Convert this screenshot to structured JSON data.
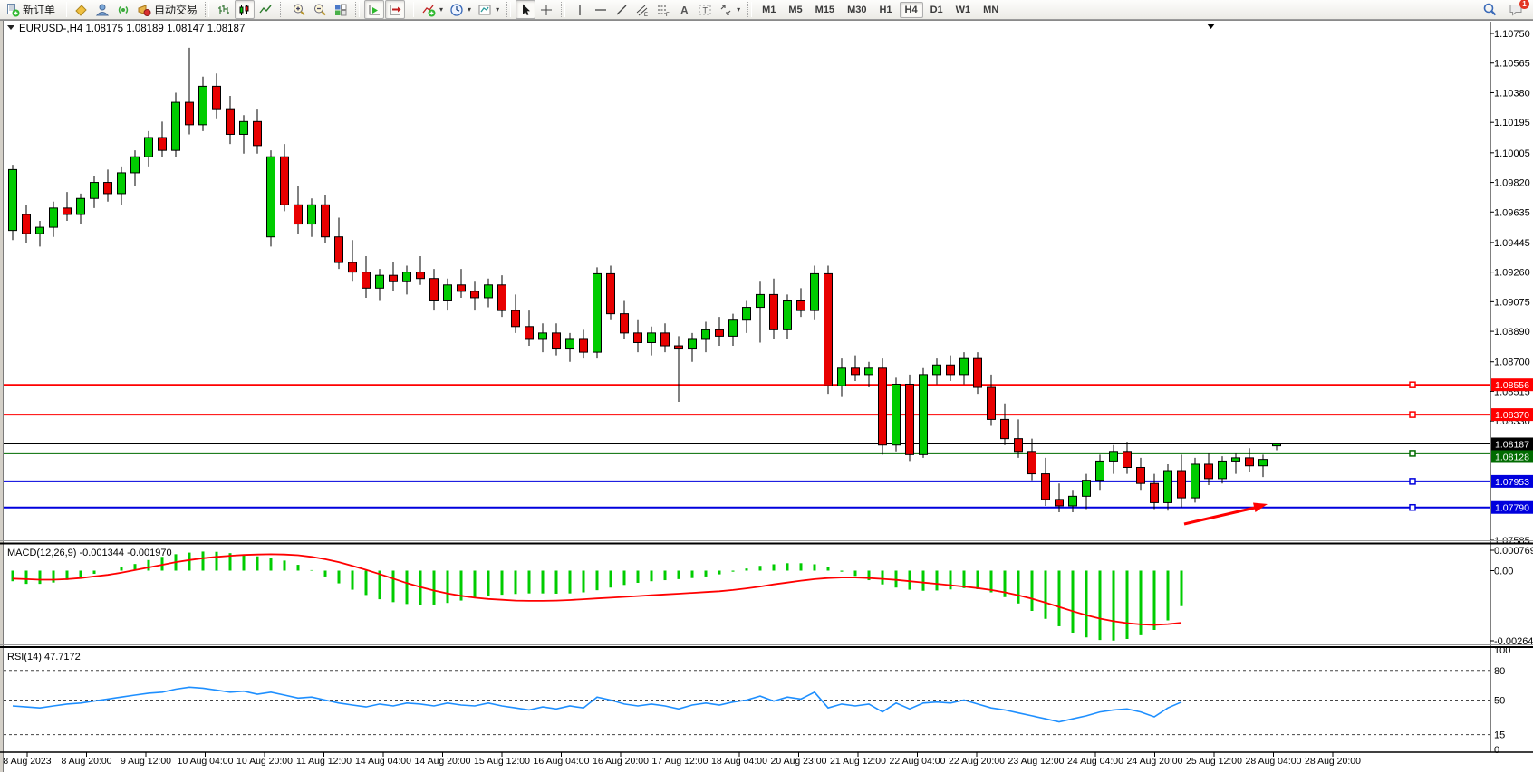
{
  "toolbar": {
    "new_order": "新订单",
    "auto_trading": "自动交易",
    "timeframes": [
      "M1",
      "M5",
      "M15",
      "M30",
      "H1",
      "H4",
      "D1",
      "W1",
      "MN"
    ],
    "active_timeframe": "H4",
    "notification_badge": "1"
  },
  "chart": {
    "symbol_title": "EURUSD-,H4",
    "ohlc_display": "1.08175 1.08189 1.08147 1.08187",
    "price_ticks": [
      "1.10750",
      "1.10565",
      "1.10380",
      "1.10195",
      "1.10005",
      "1.09820",
      "1.09635",
      "1.09445",
      "1.09260",
      "1.09075",
      "1.08890",
      "1.08700",
      "1.08515",
      "1.08330",
      "1.07585"
    ],
    "price_tick_values": [
      1.1075,
      1.10565,
      1.1038,
      1.10195,
      1.10005,
      1.0982,
      1.09635,
      1.09445,
      1.0926,
      1.09075,
      1.0889,
      1.087,
      1.08515,
      1.0833,
      1.07585
    ],
    "time_labels": [
      "8 Aug 2023",
      "8 Aug 20:00",
      "9 Aug 12:00",
      "10 Aug 04:00",
      "10 Aug 20:00",
      "11 Aug 12:00",
      "14 Aug 04:00",
      "14 Aug 20:00",
      "15 Aug 12:00",
      "16 Aug 04:00",
      "16 Aug 20:00",
      "17 Aug 12:00",
      "18 Aug 04:00",
      "20 Aug 23:00",
      "21 Aug 12:00",
      "22 Aug 04:00",
      "22 Aug 20:00",
      "23 Aug 12:00",
      "24 Aug 04:00",
      "24 Aug 20:00",
      "25 Aug 12:00",
      "28 Aug 04:00",
      "28 Aug 20:00"
    ],
    "hlines": [
      {
        "label": "1.08556",
        "value": 1.08556,
        "color": "#ff0000",
        "width": 2,
        "handle": true
      },
      {
        "label": "1.08370",
        "value": 1.0837,
        "color": "#ff0000",
        "width": 2,
        "handle": true
      },
      {
        "label": "1.08187",
        "value": 1.08187,
        "color": "#000000",
        "width": 1,
        "handle": false
      },
      {
        "label": "1.08128",
        "value": 1.08128,
        "color": "#006b00",
        "width": 2,
        "handle": true
      },
      {
        "label": "1.07953",
        "value": 1.07953,
        "color": "#0000dd",
        "width": 2,
        "handle": true
      },
      {
        "label": "1.07790",
        "value": 1.0779,
        "color": "#0000dd",
        "width": 2,
        "handle": true
      }
    ],
    "colors": {
      "up": "#00cc00",
      "down": "#e80000",
      "wick": "#000000",
      "rsi_line": "#1e8fff",
      "signal_line": "#ff0000",
      "background": "#ffffff",
      "axis_text": "#000000"
    }
  },
  "chart_data": [
    {
      "type": "candlestick",
      "name": "EURUSD H4",
      "ylim": [
        1.07585,
        1.1075
      ],
      "ohlc": [
        [
          1.0952,
          1.0993,
          1.0946,
          1.099
        ],
        [
          1.0962,
          1.0968,
          1.0944,
          1.095
        ],
        [
          1.095,
          1.0958,
          1.0942,
          1.0954
        ],
        [
          1.0954,
          1.097,
          1.0948,
          1.0966
        ],
        [
          1.0966,
          1.0976,
          1.0958,
          1.0962
        ],
        [
          1.0962,
          1.0975,
          1.0956,
          1.0972
        ],
        [
          1.0972,
          1.0986,
          1.0966,
          1.0982
        ],
        [
          1.0982,
          1.099,
          1.097,
          1.0975
        ],
        [
          1.0975,
          1.0992,
          1.0968,
          1.0988
        ],
        [
          1.0988,
          1.1002,
          1.098,
          1.0998
        ],
        [
          1.0998,
          1.1014,
          1.0992,
          1.101
        ],
        [
          1.101,
          1.102,
          1.0998,
          1.1002
        ],
        [
          1.1002,
          1.1038,
          1.0998,
          1.1032
        ],
        [
          1.1032,
          1.1066,
          1.1012,
          1.1018
        ],
        [
          1.1018,
          1.1048,
          1.1014,
          1.1042
        ],
        [
          1.1042,
          1.105,
          1.1022,
          1.1028
        ],
        [
          1.1028,
          1.1036,
          1.1006,
          1.1012
        ],
        [
          1.1012,
          1.1024,
          1.1,
          1.102
        ],
        [
          1.102,
          1.1028,
          1.1,
          1.1005
        ],
        [
          1.0948,
          1.1002,
          1.0942,
          1.0998
        ],
        [
          1.0998,
          1.1006,
          1.0964,
          1.0968
        ],
        [
          1.0968,
          1.098,
          1.095,
          1.0956
        ],
        [
          1.0956,
          1.0972,
          1.0948,
          1.0968
        ],
        [
          1.0968,
          1.0974,
          1.0944,
          1.0948
        ],
        [
          1.0948,
          1.096,
          1.0928,
          1.0932
        ],
        [
          1.0932,
          1.0946,
          1.092,
          1.0926
        ],
        [
          1.0926,
          1.0936,
          1.091,
          1.0916
        ],
        [
          1.0916,
          1.0928,
          1.0908,
          1.0924
        ],
        [
          1.0924,
          1.0932,
          1.0914,
          1.092
        ],
        [
          1.092,
          1.093,
          1.0912,
          1.0926
        ],
        [
          1.0926,
          1.0936,
          1.0918,
          1.0922
        ],
        [
          1.0922,
          1.0928,
          1.0902,
          1.0908
        ],
        [
          1.0908,
          1.0922,
          1.0902,
          1.0918
        ],
        [
          1.0918,
          1.0928,
          1.091,
          1.0914
        ],
        [
          1.0914,
          1.092,
          1.0902,
          1.091
        ],
        [
          1.091,
          1.0922,
          1.0904,
          1.0918
        ],
        [
          1.0918,
          1.0924,
          1.0898,
          1.0902
        ],
        [
          1.0902,
          1.0912,
          1.0888,
          1.0892
        ],
        [
          1.0892,
          1.0902,
          1.088,
          1.0884
        ],
        [
          1.0884,
          1.0894,
          1.0876,
          1.0888
        ],
        [
          1.0888,
          1.0894,
          1.0874,
          1.0878
        ],
        [
          1.0878,
          1.0888,
          1.087,
          1.0884
        ],
        [
          1.0884,
          1.089,
          1.0872,
          1.0876
        ],
        [
          1.0876,
          1.0929,
          1.0872,
          1.0925
        ],
        [
          1.0925,
          1.093,
          1.0896,
          1.09
        ],
        [
          1.09,
          1.0908,
          1.0884,
          1.0888
        ],
        [
          1.0888,
          1.0896,
          1.0876,
          1.0882
        ],
        [
          1.0882,
          1.0892,
          1.0874,
          1.0888
        ],
        [
          1.0888,
          1.0894,
          1.0876,
          1.088
        ],
        [
          1.088,
          1.0886,
          1.0845,
          1.0878
        ],
        [
          1.0878,
          1.0888,
          1.087,
          1.0884
        ],
        [
          1.0884,
          1.0895,
          1.0876,
          1.089
        ],
        [
          1.089,
          1.0898,
          1.088,
          1.0886
        ],
        [
          1.0886,
          1.09,
          1.088,
          1.0896
        ],
        [
          1.0896,
          1.0908,
          1.0888,
          1.0904
        ],
        [
          1.0904,
          1.092,
          1.0882,
          1.0912
        ],
        [
          1.0912,
          1.0922,
          1.0884,
          1.089
        ],
        [
          1.089,
          1.0912,
          1.0884,
          1.0908
        ],
        [
          1.0908,
          1.0916,
          1.0898,
          1.0902
        ],
        [
          1.0902,
          1.093,
          1.0896,
          1.0925
        ],
        [
          1.0925,
          1.093,
          1.085,
          1.0855
        ],
        [
          1.0855,
          1.0872,
          1.0848,
          1.0866
        ],
        [
          1.0866,
          1.0874,
          1.0858,
          1.0862
        ],
        [
          1.0862,
          1.087,
          1.0854,
          1.0866
        ],
        [
          1.0866,
          1.0872,
          1.0812,
          1.0818
        ],
        [
          1.0818,
          1.086,
          1.0814,
          1.0856
        ],
        [
          1.0856,
          1.0862,
          1.0808,
          1.0812
        ],
        [
          1.0812,
          1.0866,
          1.081,
          1.0862
        ],
        [
          1.0862,
          1.0872,
          1.0856,
          1.0868
        ],
        [
          1.0868,
          1.0874,
          1.0858,
          1.0862
        ],
        [
          1.0862,
          1.0876,
          1.0856,
          1.0872
        ],
        [
          1.0872,
          1.0876,
          1.085,
          1.0854
        ],
        [
          1.0854,
          1.0862,
          1.083,
          1.0834
        ],
        [
          1.0834,
          1.0844,
          1.0818,
          1.0822
        ],
        [
          1.0822,
          1.0834,
          1.081,
          1.0814
        ],
        [
          1.0814,
          1.0822,
          1.0796,
          1.08
        ],
        [
          1.08,
          1.081,
          1.078,
          1.0784
        ],
        [
          1.0784,
          1.0794,
          1.0776,
          1.078
        ],
        [
          1.078,
          1.079,
          1.0776,
          1.0786
        ],
        [
          1.0786,
          1.08,
          1.0778,
          1.0796
        ],
        [
          1.0796,
          1.0812,
          1.079,
          1.0808
        ],
        [
          1.0808,
          1.0818,
          1.08,
          1.0814
        ],
        [
          1.0814,
          1.082,
          1.08,
          1.0804
        ],
        [
          1.0804,
          1.081,
          1.079,
          1.0794
        ],
        [
          1.0794,
          1.08,
          1.0778,
          1.0782
        ],
        [
          1.0782,
          1.0806,
          1.0777,
          1.0802
        ],
        [
          1.0802,
          1.0812,
          1.0779,
          1.0785
        ],
        [
          1.0785,
          1.081,
          1.0782,
          1.0806
        ],
        [
          1.0806,
          1.0813,
          1.0793,
          1.0797
        ],
        [
          1.0797,
          1.0811,
          1.0794,
          1.0808
        ],
        [
          1.0808,
          1.0813,
          1.08,
          1.081
        ],
        [
          1.081,
          1.0816,
          1.0801,
          1.0805
        ],
        [
          1.0805,
          1.0812,
          1.0798,
          1.0809
        ],
        [
          1.08175,
          1.08189,
          1.08147,
          1.08187
        ]
      ]
    },
    {
      "type": "bar",
      "name": "MACD(12,26,9)",
      "label": "MACD(12,26,9) -0.001344 -0.001970",
      "macd_value": -0.001344,
      "signal_value": -0.00197,
      "ylim": [
        -0.002648,
        0.000769
      ],
      "axis_labels": [
        "0.000769",
        "0.00",
        "-0.002648"
      ],
      "histogram": [
        -0.0004,
        -0.0005,
        -0.0005,
        -0.00045,
        -0.00035,
        -0.00025,
        -0.00012,
        0,
        0.00012,
        0.00025,
        0.0004,
        0.00052,
        0.00062,
        0.00068,
        0.00072,
        0.00071,
        0.00066,
        0.0006,
        0.00054,
        0.00048,
        0.00038,
        0.00022,
        2e-05,
        -0.00022,
        -0.00048,
        -0.00072,
        -0.00092,
        -0.00108,
        -0.00119,
        -0.00126,
        -0.0013,
        -0.00128,
        -0.00122,
        -0.00113,
        -0.00104,
        -0.00097,
        -0.00091,
        -0.00088,
        -0.00086,
        -0.00086,
        -0.00087,
        -0.00086,
        -0.00082,
        -0.00074,
        -0.00064,
        -0.00054,
        -0.00046,
        -0.0004,
        -0.00036,
        -0.00032,
        -0.00028,
        -0.00022,
        -0.00014,
        -4e-05,
        8e-05,
        0.00018,
        0.00024,
        0.00028,
        0.00028,
        0.00024,
        0.00012,
        -4e-05,
        -0.0002,
        -0.00036,
        -0.00052,
        -0.00064,
        -0.00072,
        -0.00076,
        -0.00075,
        -0.00071,
        -0.00066,
        -0.0007,
        -0.00082,
        -0.001,
        -0.00124,
        -0.00152,
        -0.00182,
        -0.0021,
        -0.00234,
        -0.00252,
        -0.00262,
        -0.00264,
        -0.00258,
        -0.00244,
        -0.00224,
        -0.00188,
        -0.00134
      ],
      "signal": [
        -0.0003,
        -0.00032,
        -0.00034,
        -0.00034,
        -0.00032,
        -0.00028,
        -0.00022,
        -0.00016,
        -8e-05,
        2e-05,
        0.00012,
        0.00022,
        0.00032,
        0.0004,
        0.00047,
        0.00052,
        0.00056,
        0.00059,
        0.00061,
        0.00062,
        0.00061,
        0.00058,
        0.00052,
        0.00043,
        0.00032,
        0.00018,
        3e-05,
        -0.00013,
        -0.0003,
        -0.00047,
        -0.00062,
        -0.00075,
        -0.00086,
        -0.00095,
        -0.00102,
        -0.00107,
        -0.0011,
        -0.00113,
        -0.00114,
        -0.00114,
        -0.00113,
        -0.00111,
        -0.00108,
        -0.00105,
        -0.00102,
        -0.00099,
        -0.00096,
        -0.00093,
        -0.0009,
        -0.00087,
        -0.00084,
        -0.00081,
        -0.00078,
        -0.00073,
        -0.00067,
        -0.0006,
        -0.00052,
        -0.00045,
        -0.00038,
        -0.00032,
        -0.00028,
        -0.00026,
        -0.00026,
        -0.00028,
        -0.00031,
        -0.00035,
        -0.0004,
        -0.00045,
        -0.0005,
        -0.00055,
        -0.0006,
        -0.00066,
        -0.00073,
        -0.00082,
        -0.00093,
        -0.00106,
        -0.00121,
        -0.00137,
        -0.00153,
        -0.00168,
        -0.00181,
        -0.00191,
        -0.00198,
        -0.00203,
        -0.00205,
        -0.00202,
        -0.00197
      ]
    },
    {
      "type": "line",
      "name": "RSI(14)",
      "label": "RSI(14) 47.7172",
      "value": 47.7172,
      "ylim": [
        0,
        100
      ],
      "levels": [
        80,
        50,
        15
      ],
      "axis_labels": [
        "100",
        "80",
        "50",
        "15",
        "0"
      ],
      "values": [
        44,
        43,
        42,
        44,
        46,
        47,
        49,
        51,
        53,
        55,
        57,
        58,
        61,
        63,
        62,
        60,
        58,
        59,
        56,
        58,
        55,
        52,
        53,
        50,
        47,
        45,
        43,
        46,
        44,
        47,
        46,
        44,
        47,
        45,
        44,
        47,
        44,
        42,
        40,
        43,
        41,
        44,
        42,
        53,
        50,
        46,
        44,
        46,
        44,
        41,
        45,
        47,
        45,
        48,
        50,
        54,
        49,
        53,
        51,
        58,
        42,
        46,
        44,
        46,
        38,
        47,
        41,
        47,
        48,
        47,
        50,
        46,
        42,
        40,
        37,
        34,
        31,
        28,
        31,
        34,
        38,
        40,
        41,
        38,
        33,
        42,
        48
      ]
    }
  ]
}
